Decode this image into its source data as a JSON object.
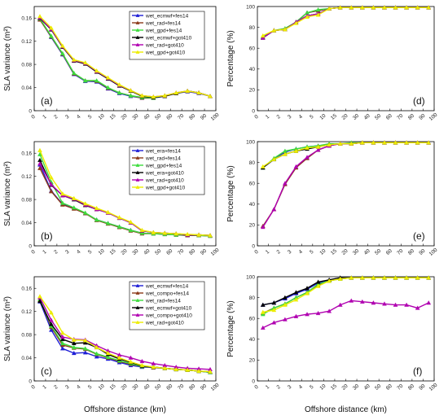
{
  "chart_data": [
    {
      "type": "line",
      "panel_label": "(a)",
      "ylabel": "SLA variance (m²)",
      "xlabel": "",
      "x": [
        0,
        1,
        2,
        3,
        4,
        5,
        10,
        15,
        20,
        30,
        40,
        50,
        60,
        70,
        80,
        90
      ],
      "x_tick_labels": [
        "0",
        "1",
        "2",
        "3",
        "4",
        "5",
        "10",
        "15",
        "20",
        "30",
        "40",
        "50",
        "60",
        "70",
        "80",
        "90",
        "100"
      ],
      "ylim": [
        0,
        0.18
      ],
      "y_ticks": [
        0,
        0.04,
        0.08,
        0.12,
        0.16
      ],
      "y_tick_labels": [
        "0",
        "0.04",
        "0.08",
        "0.12",
        "0.16"
      ],
      "legend_loc": "top-right",
      "series": [
        {
          "name": "wet_ecmwf+fes14",
          "color": "#1f1fd6",
          "marker": "tri-up",
          "values": [
            0.158,
            0.127,
            0.097,
            0.063,
            0.051,
            0.05,
            0.038,
            0.03,
            0.025,
            0.022,
            0.022,
            0.025,
            0.03,
            0.033,
            0.03,
            0.025
          ]
        },
        {
          "name": "wet_rad+fes14",
          "color": "#8b3a1a",
          "marker": "tri-up",
          "values": [
            0.157,
            0.128,
            0.098,
            0.064,
            0.052,
            0.051,
            0.039,
            0.031,
            0.026,
            0.022,
            0.022,
            0.026,
            0.03,
            0.034,
            0.031,
            0.025
          ]
        },
        {
          "name": "wet_gpd+fes14",
          "color": "#3ddc3d",
          "marker": "tri-up",
          "values": [
            0.159,
            0.129,
            0.099,
            0.065,
            0.052,
            0.052,
            0.04,
            0.031,
            0.026,
            0.023,
            0.022,
            0.026,
            0.03,
            0.034,
            0.031,
            0.025
          ]
        },
        {
          "name": "wet_ecmwf+got410",
          "color": "#000000",
          "marker": "tri-up",
          "values": [
            0.16,
            0.14,
            0.11,
            0.086,
            0.081,
            0.067,
            0.055,
            0.043,
            0.034,
            0.025,
            0.023,
            0.025,
            0.03,
            0.034,
            0.031,
            0.025
          ]
        },
        {
          "name": "wet_rad+got410",
          "color": "#b000b0",
          "marker": "tri-up",
          "values": [
            0.161,
            0.141,
            0.111,
            0.087,
            0.082,
            0.068,
            0.056,
            0.044,
            0.035,
            0.026,
            0.024,
            0.026,
            0.031,
            0.034,
            0.031,
            0.025
          ]
        },
        {
          "name": "wet_gpd+got410",
          "color": "#eded00",
          "marker": "tri-up",
          "values": [
            0.163,
            0.143,
            0.112,
            0.088,
            0.083,
            0.069,
            0.057,
            0.045,
            0.035,
            0.026,
            0.024,
            0.026,
            0.031,
            0.034,
            0.031,
            0.025
          ]
        }
      ]
    },
    {
      "type": "line",
      "panel_label": "(d)",
      "ylabel": "Percentage (%)",
      "xlabel": "",
      "x": [
        0,
        1,
        2,
        3,
        4,
        5,
        10,
        15,
        20,
        30,
        40,
        50,
        60,
        70,
        80,
        90
      ],
      "x_tick_labels": [
        "0",
        "1",
        "2",
        "3",
        "4",
        "5",
        "10",
        "15",
        "20",
        "30",
        "40",
        "50",
        "60",
        "70",
        "80",
        "90",
        "100"
      ],
      "ylim": [
        0,
        100
      ],
      "y_ticks": [
        0,
        20,
        40,
        60,
        80,
        100
      ],
      "y_tick_labels": [
        "0",
        "20",
        "40",
        "60",
        "80",
        "100"
      ],
      "legend_loc": "none",
      "series": [
        {
          "color": "#1f1fd6",
          "values": [
            70,
            77,
            78,
            85,
            94,
            96,
            98,
            99,
            99,
            99,
            99,
            99,
            99,
            99,
            99,
            99
          ]
        },
        {
          "color": "#8b3a1a",
          "values": [
            70,
            77,
            78,
            85,
            94,
            96,
            98,
            99,
            99,
            99,
            99,
            99,
            99,
            99,
            99,
            99
          ]
        },
        {
          "color": "#3ddc3d",
          "values": [
            71,
            77,
            79,
            85,
            94,
            97,
            98,
            99,
            99,
            99,
            99,
            99,
            99,
            99,
            99,
            99
          ]
        },
        {
          "color": "#000000",
          "values": [
            70,
            77,
            78,
            85,
            91,
            93,
            98,
            99,
            99,
            99,
            99,
            99,
            99,
            99,
            99,
            99
          ]
        },
        {
          "color": "#b000b0",
          "values": [
            70,
            77,
            78,
            85,
            91,
            93,
            98,
            99,
            99,
            99,
            99,
            99,
            99,
            99,
            99,
            99
          ]
        },
        {
          "color": "#eded00",
          "values": [
            72,
            77,
            78,
            84,
            90,
            92,
            98,
            99,
            99,
            99,
            99,
            99,
            99,
            99,
            99,
            99
          ]
        }
      ]
    },
    {
      "type": "line",
      "panel_label": "(b)",
      "ylabel": "SLA variance (m²)",
      "xlabel": "",
      "x": [
        0,
        1,
        2,
        3,
        4,
        5,
        10,
        15,
        20,
        30,
        40,
        50,
        60,
        70,
        80,
        90
      ],
      "x_tick_labels": [
        "0",
        "1",
        "2",
        "3",
        "4",
        "5",
        "10",
        "15",
        "20",
        "30",
        "40",
        "50",
        "60",
        "70",
        "80",
        "90",
        "100"
      ],
      "ylim": [
        0,
        0.18
      ],
      "y_ticks": [
        0,
        0.04,
        0.08,
        0.12,
        0.16
      ],
      "y_tick_labels": [
        "0",
        "0.04",
        "0.08",
        "0.12",
        "0.16"
      ],
      "legend_loc": "top-right",
      "series": [
        {
          "name": "wet_era+fes14",
          "color": "#1f1fd6",
          "marker": "tri-up",
          "values": [
            0.14,
            0.095,
            0.072,
            0.065,
            0.056,
            0.045,
            0.039,
            0.033,
            0.027,
            0.022,
            0.021,
            0.02,
            0.019,
            0.018,
            0.018,
            0.017
          ]
        },
        {
          "name": "wet_rad+fes14",
          "color": "#8b3a1a",
          "marker": "tri-up",
          "values": [
            0.134,
            0.094,
            0.071,
            0.064,
            0.056,
            0.044,
            0.038,
            0.032,
            0.026,
            0.021,
            0.021,
            0.02,
            0.019,
            0.018,
            0.018,
            0.017
          ]
        },
        {
          "name": "wet_gpd+fes14",
          "color": "#3ddc3d",
          "marker": "tri-up",
          "values": [
            0.158,
            0.11,
            0.074,
            0.066,
            0.057,
            0.045,
            0.039,
            0.033,
            0.027,
            0.022,
            0.021,
            0.02,
            0.019,
            0.019,
            0.018,
            0.017
          ]
        },
        {
          "name": "wet_era+got410",
          "color": "#000000",
          "marker": "tri-up",
          "values": [
            0.148,
            0.105,
            0.087,
            0.08,
            0.07,
            0.063,
            0.057,
            0.048,
            0.04,
            0.026,
            0.023,
            0.022,
            0.021,
            0.019,
            0.019,
            0.018
          ]
        },
        {
          "name": "wet_rad+got410",
          "color": "#b000b0",
          "marker": "tri-up",
          "values": [
            0.142,
            0.106,
            0.087,
            0.081,
            0.071,
            0.063,
            0.057,
            0.048,
            0.04,
            0.026,
            0.023,
            0.022,
            0.021,
            0.019,
            0.019,
            0.018
          ]
        },
        {
          "name": "wet_gpd+got410",
          "color": "#eded00",
          "marker": "tri-up",
          "values": [
            0.165,
            0.118,
            0.09,
            0.082,
            0.073,
            0.065,
            0.058,
            0.049,
            0.041,
            0.027,
            0.023,
            0.022,
            0.021,
            0.02,
            0.019,
            0.018
          ]
        }
      ]
    },
    {
      "type": "line",
      "panel_label": "(e)",
      "ylabel": "Percentage (%)",
      "xlabel": "",
      "x": [
        0,
        1,
        2,
        3,
        4,
        5,
        10,
        15,
        20,
        30,
        40,
        50,
        60,
        70,
        80,
        90
      ],
      "x_tick_labels": [
        "0",
        "1",
        "2",
        "3",
        "4",
        "5",
        "10",
        "15",
        "20",
        "30",
        "40",
        "50",
        "60",
        "70",
        "80",
        "90",
        "100"
      ],
      "ylim": [
        0,
        100
      ],
      "y_ticks": [
        0,
        20,
        40,
        60,
        80,
        100
      ],
      "y_tick_labels": [
        "0",
        "20",
        "40",
        "60",
        "80",
        "100"
      ],
      "legend_loc": "none",
      "series": [
        {
          "color": "#1f1fd6",
          "values": [
            75,
            83,
            90,
            93,
            95,
            96,
            97,
            98,
            98,
            99,
            99,
            99,
            99,
            99,
            99,
            99
          ]
        },
        {
          "color": "#8b3a1a",
          "values": [
            19,
            35,
            59,
            75,
            84,
            92,
            96,
            98,
            98,
            99,
            99,
            99,
            99,
            99,
            99,
            99
          ]
        },
        {
          "color": "#3ddc3d",
          "values": [
            75,
            84,
            91,
            93,
            95,
            96,
            98,
            98,
            99,
            99,
            99,
            99,
            99,
            99,
            99,
            99
          ]
        },
        {
          "color": "#000000",
          "values": [
            75,
            83,
            88,
            91,
            93,
            95,
            97,
            98,
            98,
            99,
            99,
            99,
            99,
            99,
            99,
            99
          ]
        },
        {
          "color": "#b000b0",
          "values": [
            18,
            35,
            60,
            76,
            85,
            92,
            96,
            98,
            98,
            99,
            99,
            99,
            99,
            99,
            99,
            99
          ]
        },
        {
          "color": "#eded00",
          "values": [
            76,
            83,
            88,
            91,
            94,
            95,
            97,
            98,
            98,
            99,
            99,
            99,
            99,
            99,
            99,
            99
          ]
        }
      ]
    },
    {
      "type": "line",
      "panel_label": "(c)",
      "ylabel": "SLA variance (m²)",
      "xlabel": "Offshore distance (km)",
      "x": [
        0,
        1,
        2,
        3,
        4,
        5,
        10,
        15,
        20,
        30,
        40,
        50,
        60,
        70,
        80,
        90
      ],
      "x_tick_labels": [
        "0",
        "1",
        "2",
        "3",
        "4",
        "5",
        "10",
        "15",
        "20",
        "30",
        "40",
        "50",
        "60",
        "70",
        "80",
        "90",
        "100"
      ],
      "ylim": [
        0,
        0.18
      ],
      "y_ticks": [
        0,
        0.04,
        0.08,
        0.12,
        0.16
      ],
      "y_tick_labels": [
        "0",
        "0.04",
        "0.08",
        "0.12",
        "0.16"
      ],
      "legend_loc": "top-right",
      "series": [
        {
          "name": "wet_ecmwf+fes14",
          "color": "#1f1fd6",
          "marker": "tri-up",
          "values": [
            0.137,
            0.088,
            0.056,
            0.048,
            0.049,
            0.042,
            0.038,
            0.032,
            0.027,
            0.024,
            0.023,
            0.022,
            0.02,
            0.019,
            0.017,
            0.015
          ]
        },
        {
          "name": "wet_compo+fes14",
          "color": "#8b3a1a",
          "marker": "tri-up",
          "values": [
            0.14,
            0.093,
            0.062,
            0.057,
            0.055,
            0.046,
            0.04,
            0.034,
            0.029,
            0.025,
            0.023,
            0.022,
            0.02,
            0.019,
            0.017,
            0.015
          ]
        },
        {
          "name": "wet_rad+fes14",
          "color": "#3ddc3d",
          "marker": "tri-up",
          "values": [
            0.141,
            0.095,
            0.065,
            0.058,
            0.056,
            0.047,
            0.041,
            0.035,
            0.03,
            0.025,
            0.024,
            0.022,
            0.02,
            0.019,
            0.017,
            0.015
          ]
        },
        {
          "name": "wet_ecmwf+got410",
          "color": "#000000",
          "marker": "tri-up",
          "values": [
            0.138,
            0.098,
            0.072,
            0.065,
            0.066,
            0.058,
            0.046,
            0.038,
            0.032,
            0.026,
            0.024,
            0.022,
            0.02,
            0.019,
            0.017,
            0.016
          ]
        },
        {
          "name": "wet_compo+got410",
          "color": "#b000b0",
          "marker": "tri-up",
          "values": [
            0.144,
            0.105,
            0.076,
            0.072,
            0.071,
            0.061,
            0.052,
            0.045,
            0.04,
            0.034,
            0.03,
            0.027,
            0.024,
            0.022,
            0.021,
            0.02
          ]
        },
        {
          "name": "wet_rad+got410",
          "color": "#eded00",
          "marker": "tri-up",
          "values": [
            0.146,
            0.118,
            0.083,
            0.071,
            0.07,
            0.058,
            0.048,
            0.04,
            0.033,
            0.027,
            0.024,
            0.022,
            0.02,
            0.019,
            0.017,
            0.016
          ]
        }
      ]
    },
    {
      "type": "line",
      "panel_label": "(f)",
      "ylabel": "Percentage (%)",
      "xlabel": "Offshore distance (km)",
      "x": [
        0,
        1,
        2,
        3,
        4,
        5,
        10,
        15,
        20,
        30,
        40,
        50,
        60,
        70,
        80,
        90
      ],
      "x_tick_labels": [
        "0",
        "1",
        "2",
        "3",
        "4",
        "5",
        "10",
        "15",
        "20",
        "30",
        "40",
        "50",
        "60",
        "70",
        "80",
        "90",
        "100"
      ],
      "ylim": [
        0,
        100
      ],
      "y_ticks": [
        0,
        20,
        40,
        60,
        80,
        100
      ],
      "y_tick_labels": [
        "0",
        "20",
        "40",
        "60",
        "80",
        "100"
      ],
      "legend_loc": "none",
      "series": [
        {
          "color": "#1f1fd6",
          "values": [
            73,
            75,
            79,
            84,
            88,
            94,
            97,
            99,
            99,
            99,
            99,
            99,
            99,
            99,
            99,
            99
          ]
        },
        {
          "color": "#8b3a1a",
          "values": [
            65,
            70,
            74,
            80,
            85,
            92,
            96,
            98,
            99,
            99,
            99,
            99,
            99,
            99,
            99,
            99
          ]
        },
        {
          "color": "#3ddc3d",
          "values": [
            64,
            70,
            74,
            80,
            85,
            93,
            96,
            98,
            99,
            99,
            99,
            99,
            99,
            99,
            99,
            99
          ]
        },
        {
          "color": "#000000",
          "values": [
            73,
            75,
            80,
            85,
            89,
            95,
            97,
            99,
            99,
            99,
            99,
            99,
            99,
            99,
            99,
            99
          ]
        },
        {
          "color": "#b000b0",
          "values": [
            51,
            56,
            59,
            62,
            64,
            65,
            67,
            73,
            77,
            76,
            75,
            74,
            73,
            73,
            70,
            75
          ]
        },
        {
          "color": "#eded00",
          "values": [
            66,
            68,
            73,
            78,
            84,
            91,
            96,
            98,
            99,
            99,
            99,
            99,
            99,
            99,
            99,
            99
          ]
        }
      ]
    }
  ]
}
